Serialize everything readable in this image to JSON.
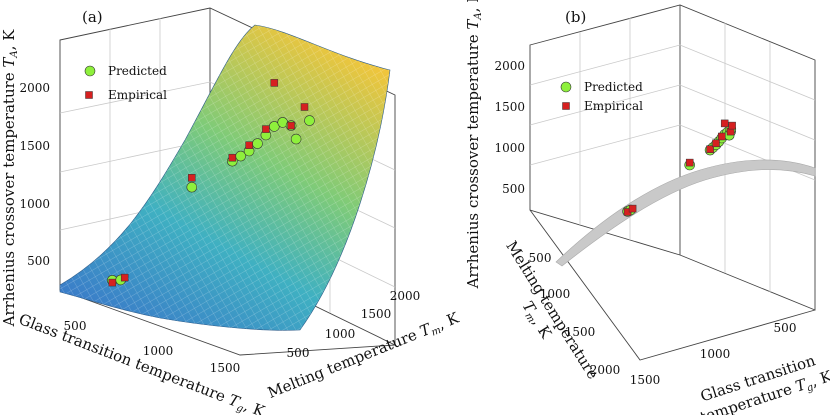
{
  "chart_data": [
    {
      "panel_label": "(a)",
      "type": "surface3d",
      "zlabel": "Arrhenius crossover temperature T_A, K",
      "xlabel": "Glass transition temperature T_g, K",
      "ylabel": "Melting temperature T_m, K",
      "zticks": [
        "500",
        "1000",
        "1500",
        "2000"
      ],
      "xticks": [
        "500",
        "1000",
        "1500"
      ],
      "yticks": [
        "500",
        "1000",
        "1500",
        "2000"
      ],
      "legend": [
        {
          "name": "Predicted",
          "marker": "circle",
          "color": "#8ef03c"
        },
        {
          "name": "Empirical",
          "marker": "square",
          "color": "#d62020"
        }
      ],
      "legend_position": "top-left",
      "surface_colormap": [
        "#3a78c9",
        "#3fb4bd",
        "#8fcf6a",
        "#f2c23a"
      ],
      "series": [
        {
          "name": "Predicted",
          "points": [
            {
              "tg": 250,
              "tm": 400,
              "ta": 290
            },
            {
              "tg": 300,
              "tm": 450,
              "ta": 300
            },
            {
              "tg": 500,
              "tm": 1200,
              "ta": 1020
            },
            {
              "tg": 700,
              "tm": 1500,
              "ta": 1250
            },
            {
              "tg": 750,
              "tm": 1550,
              "ta": 1300
            },
            {
              "tg": 800,
              "tm": 1600,
              "ta": 1350
            },
            {
              "tg": 850,
              "tm": 1650,
              "ta": 1420
            },
            {
              "tg": 900,
              "tm": 1700,
              "ta": 1500
            },
            {
              "tg": 950,
              "tm": 1750,
              "ta": 1580
            },
            {
              "tg": 1000,
              "tm": 1800,
              "ta": 1620
            },
            {
              "tg": 1050,
              "tm": 1850,
              "ta": 1600
            },
            {
              "tg": 1100,
              "tm": 1850,
              "ta": 1500
            },
            {
              "tg": 1200,
              "tm": 1900,
              "ta": 1680
            }
          ]
        },
        {
          "name": "Empirical",
          "points": [
            {
              "tg": 250,
              "tm": 400,
              "ta": 270
            },
            {
              "tg": 320,
              "tm": 480,
              "ta": 320
            },
            {
              "tg": 500,
              "tm": 1200,
              "ta": 1100
            },
            {
              "tg": 700,
              "tm": 1500,
              "ta": 1280
            },
            {
              "tg": 800,
              "tm": 1600,
              "ta": 1400
            },
            {
              "tg": 900,
              "tm": 1700,
              "ta": 1550
            },
            {
              "tg": 950,
              "tm": 1750,
              "ta": 1950
            },
            {
              "tg": 1050,
              "tm": 1850,
              "ta": 1600
            },
            {
              "tg": 1150,
              "tm": 1900,
              "ta": 1780
            }
          ]
        }
      ]
    },
    {
      "panel_label": "(b)",
      "type": "surface3d",
      "zlabel": "Arrhenius crossover temperature T_A, K",
      "xlabel": "Glass transition temperature T_g, K",
      "ylabel": "Melting temperature T_m, K",
      "zticks": [
        "500",
        "1000",
        "1500",
        "2000"
      ],
      "xticks": [
        "500",
        "1000",
        "1500"
      ],
      "yticks": [
        "500",
        "1000",
        "1500",
        "2000"
      ],
      "legend": [
        {
          "name": "Predicted",
          "marker": "circle",
          "color": "#8ef03c"
        },
        {
          "name": "Empirical",
          "marker": "square",
          "color": "#d62020"
        }
      ],
      "legend_position": "top-left",
      "surface_color": "#c8c8c8"
    }
  ]
}
